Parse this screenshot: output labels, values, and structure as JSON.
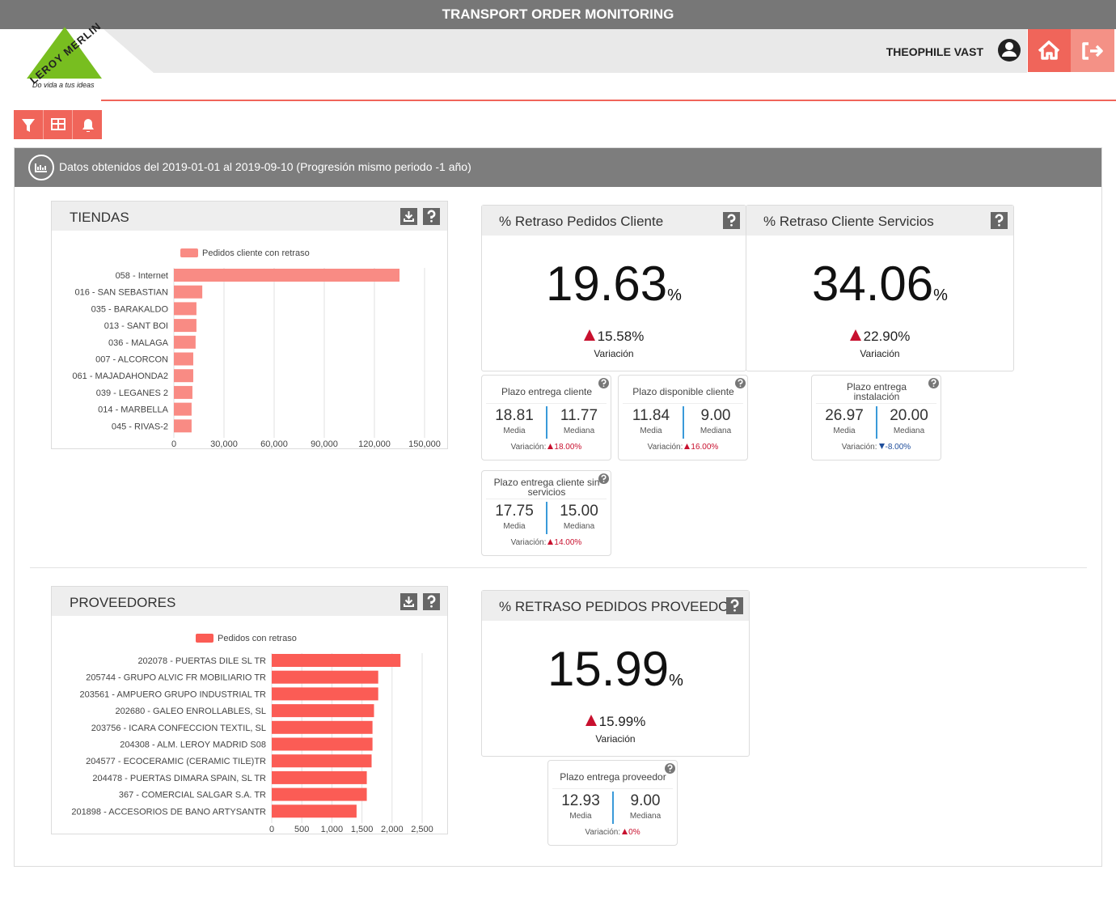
{
  "header": {
    "title": "TRANSPORT ORDER MONITORING",
    "user": "THEOPHILE VAST",
    "logo": "LEROY MERLIN",
    "slogan": "Do vida a tus ideas"
  },
  "period": "Datos obtenidos del 2019-01-01 al 2019-09-10 (Progresión mismo periodo -1 año)",
  "chart_data": [
    {
      "type": "barh",
      "title": "TIENDAS",
      "categories": [
        "058 - Internet",
        "016 - SAN SEBASTIAN",
        "035 - BARAKALDO",
        "013 - SANT BOI",
        "036 - MALAGA",
        "007 - ALCORCON",
        "061 - MAJADAHONDA2",
        "039 - LEGANES 2",
        "014 - MARBELLA",
        "045 - RIVAS-2"
      ],
      "series": [
        {
          "name": "Pedidos cliente con retraso",
          "color": "#f98b84",
          "values": [
            135000,
            17000,
            13500,
            13500,
            13000,
            11600,
            11600,
            11100,
            10600,
            10600
          ]
        }
      ],
      "xlim": [
        0,
        150000
      ],
      "xticks": [
        0,
        {
          "value": 30000,
          "label": "30,000"
        },
        {
          "value": 60000,
          "label": "60,000"
        },
        {
          "value": 90000,
          "label": "90,000"
        },
        {
          "value": 120000,
          "label": "120,000"
        },
        {
          "value": 150000,
          "label": "150,000"
        }
      ],
      "grid": true,
      "legend": "top"
    },
    {
      "type": "barh",
      "title": "PROVEEDORES",
      "categories": [
        "202078 - PUERTAS DILE SL TR",
        "205744 - GRUPO ALVIC FR MOBILIARIO TR",
        "203561 - AMPUERO GRUPO INDUSTRIAL TR",
        "202680 - GALEO ENROLLABLES, SL",
        "203756 - ICARA CONFECCION TEXTIL, SL",
        "204308 - ALM. LEROY MADRID S08",
        "204577 - ECOCERAMIC (CERAMIC TILE)TR",
        "204478 - PUERTAS DIMARA SPAIN, SL TR",
        "367 - COMERCIAL SALGAR S.A. TR",
        "201898 - ACCESORIOS DE BANO ARTYSANTR"
      ],
      "series": [
        {
          "name": "Pedidos con retraso",
          "color": "#fb5c55",
          "values": [
            2140,
            1770,
            1770,
            1700,
            1675,
            1675,
            1660,
            1580,
            1580,
            1410
          ]
        }
      ],
      "xlim": [
        0,
        2500
      ],
      "xticks": [
        0,
        500,
        {
          "value": 1000,
          "label": "1,000"
        },
        {
          "value": 1500,
          "label": "1,500"
        },
        {
          "value": 2000,
          "label": "2,000"
        },
        {
          "value": 2500,
          "label": "2,500"
        }
      ],
      "grid": true,
      "legend": "top"
    }
  ],
  "kpis": [
    {
      "title": "% Retraso Pedidos Cliente",
      "value": "19.63",
      "unit": "%",
      "variation": "15.58%",
      "trend": "up",
      "variation_label": "Variación",
      "details": [
        {
          "title": "Plazo entrega cliente",
          "media": "18.81",
          "media_label": "Media",
          "mediana": "11.77",
          "mediana_label": "Mediana",
          "variation_label": "Variación:",
          "variation": "18.00%",
          "trend": "up"
        },
        {
          "title": "Plazo disponible cliente",
          "media": "11.84",
          "media_label": "Media",
          "mediana": "9.00",
          "mediana_label": "Mediana",
          "variation_label": "Variación:",
          "variation": "16.00%",
          "trend": "up"
        },
        {
          "title": "Plazo entrega cliente sin servicios",
          "media": "17.75",
          "media_label": "Media",
          "mediana": "15.00",
          "mediana_label": "Mediana",
          "variation_label": "Variación:",
          "variation": "14.00%",
          "trend": "up"
        }
      ]
    },
    {
      "title": "% Retraso Cliente Servicios",
      "value": "34.06",
      "unit": "%",
      "variation": "22.90%",
      "trend": "up",
      "variation_label": "Variación",
      "details": [
        {
          "title": "Plazo entrega instalación",
          "media": "26.97",
          "media_label": "Media",
          "mediana": "20.00",
          "mediana_label": "Mediana",
          "variation_label": "Variación:",
          "variation": "-8.00%",
          "trend": "down"
        }
      ]
    },
    {
      "title": "% RETRASO PEDIDOS PROVEEDOR",
      "value": "15.99",
      "unit": "%",
      "variation": "15.99%",
      "trend": "up",
      "variation_label": "Variación",
      "details": [
        {
          "title": "Plazo entrega proveedor",
          "media": "12.93",
          "media_label": "Media",
          "mediana": "9.00",
          "mediana_label": "Mediana",
          "variation_label": "Variación:",
          "variation": "0%",
          "trend": "up"
        }
      ]
    }
  ]
}
